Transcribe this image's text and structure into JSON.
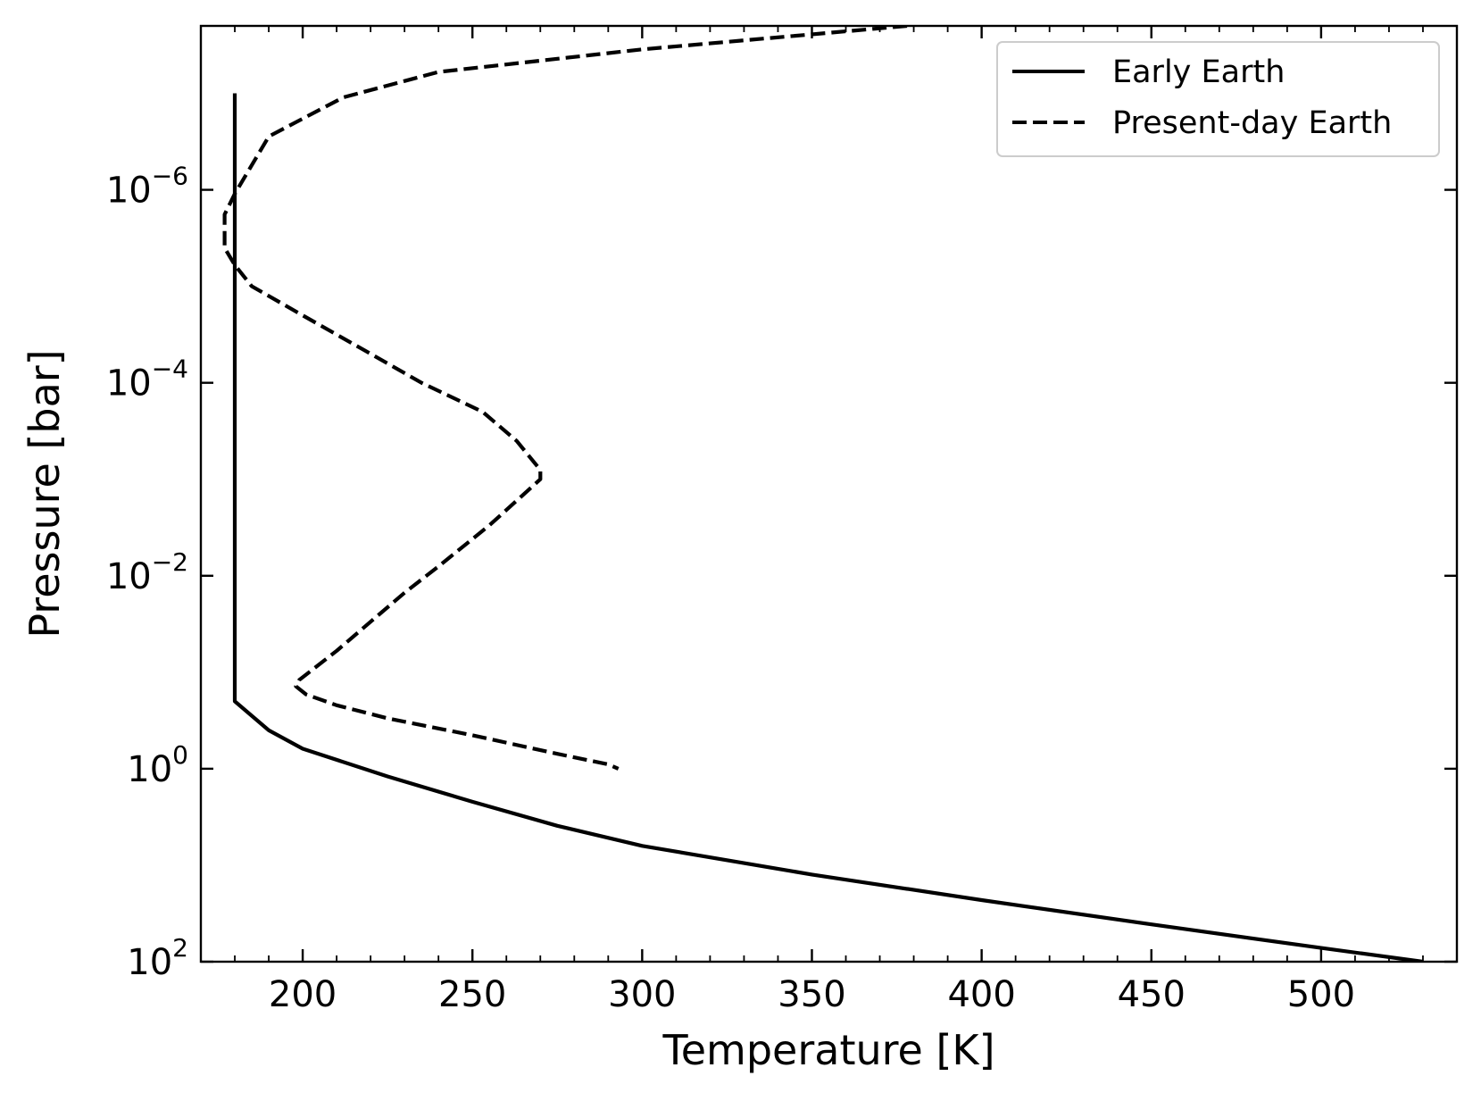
{
  "chart_data": {
    "type": "line",
    "title": "",
    "xlabel": "Temperature [K]",
    "ylabel": "Pressure [bar]",
    "xlim": [
      170,
      540
    ],
    "ylim": [
      100,
      2e-08
    ],
    "yscale": "log",
    "y_inverted": true,
    "x_ticks": [
      200,
      250,
      300,
      350,
      400,
      450,
      500
    ],
    "x_tick_labels": [
      "200",
      "250",
      "300",
      "350",
      "400",
      "450",
      "500"
    ],
    "y_ticks": [
      1e-06,
      0.0001,
      0.01,
      1,
      100
    ],
    "y_tick_labels": [
      {
        "base": "10",
        "exp": "−6"
      },
      {
        "base": "10",
        "exp": "−4"
      },
      {
        "base": "10",
        "exp": "−2"
      },
      {
        "base": "10",
        "exp": "0"
      },
      {
        "base": "10",
        "exp": "2"
      }
    ],
    "grid": false,
    "legend_position": "top-right",
    "series": [
      {
        "name": "Early Earth",
        "style": "solid",
        "color": "#000000",
        "points": [
          {
            "x": 180,
            "y": 1e-07
          },
          {
            "x": 180,
            "y": 0.2
          },
          {
            "x": 190,
            "y": 0.4
          },
          {
            "x": 200,
            "y": 0.62
          },
          {
            "x": 225,
            "y": 1.2
          },
          {
            "x": 250,
            "y": 2.2
          },
          {
            "x": 275,
            "y": 3.9
          },
          {
            "x": 300,
            "y": 6.3
          },
          {
            "x": 350,
            "y": 12.5
          },
          {
            "x": 400,
            "y": 23
          },
          {
            "x": 450,
            "y": 41
          },
          {
            "x": 500,
            "y": 72
          },
          {
            "x": 530,
            "y": 100
          }
        ]
      },
      {
        "name": "Present-day Earth",
        "style": "dashed",
        "color": "#000000",
        "points": [
          {
            "x": 378,
            "y": 2e-08
          },
          {
            "x": 300,
            "y": 3.5e-08
          },
          {
            "x": 240,
            "y": 6e-08
          },
          {
            "x": 212,
            "y": 1.1e-07
          },
          {
            "x": 190,
            "y": 2.8e-07
          },
          {
            "x": 180,
            "y": 1.1e-06
          },
          {
            "x": 177,
            "y": 1.8e-06
          },
          {
            "x": 177,
            "y": 4e-06
          },
          {
            "x": 180,
            "y": 6e-06
          },
          {
            "x": 185,
            "y": 1e-05
          },
          {
            "x": 200,
            "y": 2e-05
          },
          {
            "x": 220,
            "y": 5e-05
          },
          {
            "x": 235,
            "y": 0.0001
          },
          {
            "x": 253,
            "y": 0.0002
          },
          {
            "x": 263,
            "y": 0.0004
          },
          {
            "x": 270,
            "y": 0.0008
          },
          {
            "x": 270,
            "y": 0.001
          },
          {
            "x": 255,
            "y": 0.003
          },
          {
            "x": 240,
            "y": 0.008
          },
          {
            "x": 230,
            "y": 0.015
          },
          {
            "x": 220,
            "y": 0.03
          },
          {
            "x": 210,
            "y": 0.06
          },
          {
            "x": 199,
            "y": 0.12
          },
          {
            "x": 198,
            "y": 0.14
          },
          {
            "x": 201,
            "y": 0.17
          },
          {
            "x": 210,
            "y": 0.22
          },
          {
            "x": 225,
            "y": 0.3
          },
          {
            "x": 250,
            "y": 0.45
          },
          {
            "x": 275,
            "y": 0.7
          },
          {
            "x": 290,
            "y": 0.9
          },
          {
            "x": 293,
            "y": 1.0
          }
        ]
      }
    ]
  }
}
